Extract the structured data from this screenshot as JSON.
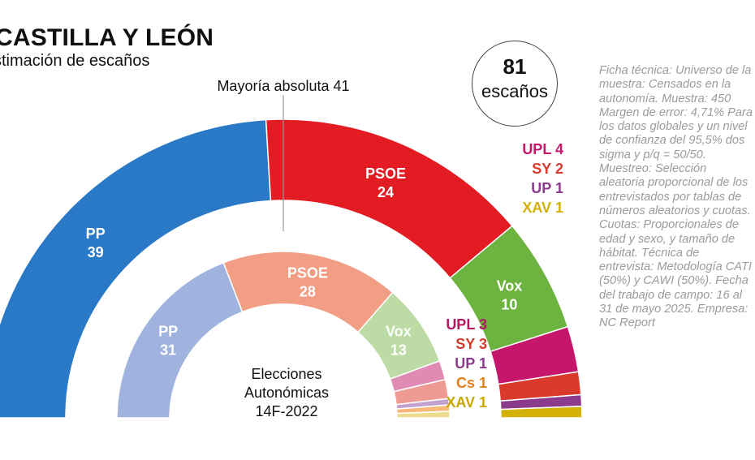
{
  "header": {
    "title": "CASTILLA Y LEÓN",
    "subtitle": "stimación de escaños"
  },
  "total": {
    "value": "81",
    "unit": "escaños"
  },
  "majority_label": "Mayoría absoluta 41",
  "ficha_tecnica": "Ficha técnica: Universo de la muestra: Censados en la autonomía. Muestra: 450 Margen de error: 4,71% Para los datos globales y un nivel de confianza del 95,5% dos sigma y p/q = 50/50. Muestreo: Selección aleatoria proporcional de los entrevistados por tablas de números aleatorios y cuotas. Cuotas: Proporcionales de edad y sexo, y tamaño de hábitat. Técnica de entrevista: Metodología CATI (50%) y CAWI (50%). Fecha del trabajo de campo: 16 al 31 de mayo 2025. Empresa: NC Report",
  "chart_data": [
    {
      "type": "pie",
      "title": "Estimación de escaños",
      "total_seats": 81,
      "majority": 41,
      "series": [
        {
          "party": "PP",
          "seats": 39,
          "color": "#2a79c6"
        },
        {
          "party": "PSOE",
          "seats": 24,
          "color": "#e31b23"
        },
        {
          "party": "Vox",
          "seats": 10,
          "color": "#6db33f"
        },
        {
          "party": "UPL",
          "seats": 4,
          "color": "#c5166b"
        },
        {
          "party": "SY",
          "seats": 2,
          "color": "#d93a2b"
        },
        {
          "party": "UP",
          "seats": 1,
          "color": "#8c3b8c"
        },
        {
          "party": "XAV",
          "seats": 1,
          "color": "#d4b106"
        }
      ]
    },
    {
      "type": "pie",
      "title": "Elecciones Autonómicas 14F-2022",
      "title_lines": [
        "Elecciones",
        "Autonómicas",
        "14F-2022"
      ],
      "total_seats": 81,
      "series": [
        {
          "party": "PP",
          "seats": 31,
          "color": "#9fb3de"
        },
        {
          "party": "PSOE",
          "seats": 28,
          "color": "#f29e84"
        },
        {
          "party": "Vox",
          "seats": 13,
          "color": "#bddba4"
        },
        {
          "party": "UPL",
          "seats": 3,
          "color": "#e08bb4"
        },
        {
          "party": "SY",
          "seats": 3,
          "color": "#ee9b93"
        },
        {
          "party": "UP",
          "seats": 1,
          "color": "#c3a2cf"
        },
        {
          "party": "Cs",
          "seats": 1,
          "color": "#f6b97a"
        },
        {
          "party": "XAV",
          "seats": 1,
          "color": "#ecdc8e"
        }
      ]
    }
  ]
}
